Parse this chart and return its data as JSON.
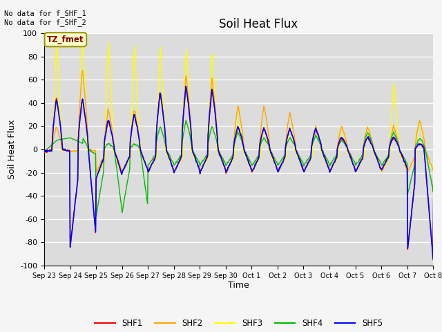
{
  "title": "Soil Heat Flux",
  "ylabel": "Soil Heat Flux",
  "xlabel": "Time",
  "ylim": [
    -100,
    100
  ],
  "yticks": [
    -100,
    -80,
    -60,
    -40,
    -20,
    0,
    20,
    40,
    60,
    80,
    100
  ],
  "xtick_labels": [
    "Sep 23",
    "Sep 24",
    "Sep 25",
    "Sep 26",
    "Sep 27",
    "Sep 28",
    "Sep 29",
    "Sep 30",
    "Oct 1",
    "Oct 2",
    "Oct 3",
    "Oct 4",
    "Oct 5",
    "Oct 6",
    "Oct 7",
    "Oct 8"
  ],
  "annotation_text": "No data for f_SHF_1\nNo data for f_SHF_2",
  "box_label": "TZ_fmet",
  "colors": {
    "SHF1": "#ff0000",
    "SHF2": "#ffa500",
    "SHF3": "#ffff00",
    "SHF4": "#00bb00",
    "SHF5": "#0000ff"
  },
  "bg_color": "#dcdcdc",
  "title_fontsize": 12,
  "axis_fontsize": 9,
  "tick_fontsize": 8
}
